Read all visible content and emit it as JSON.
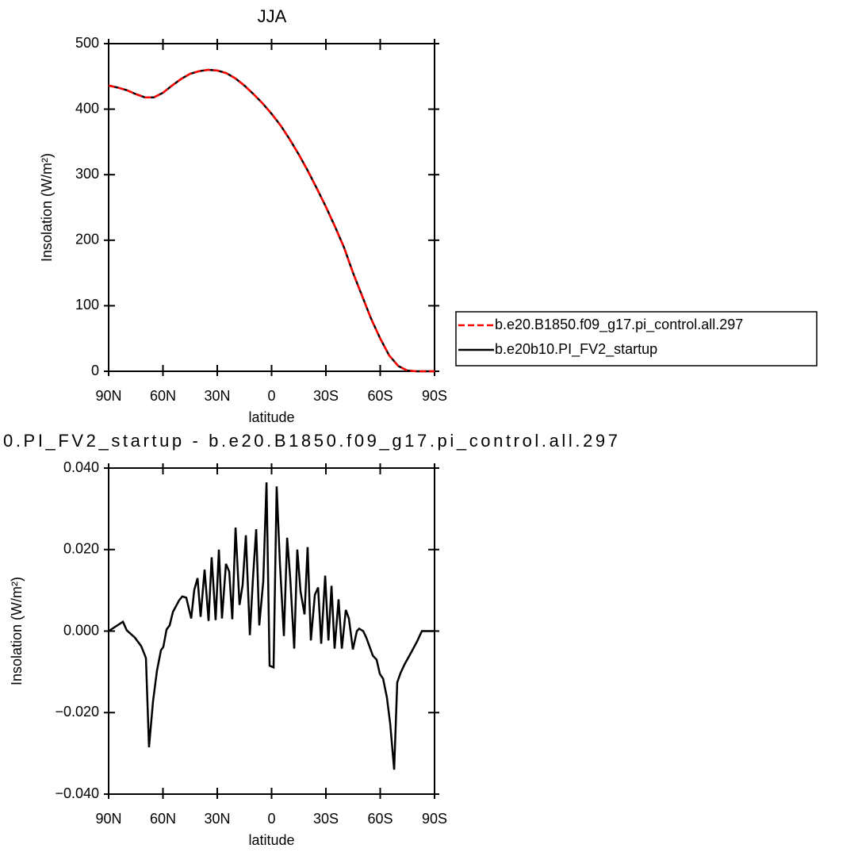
{
  "chart_data": [
    {
      "type": "line",
      "title": "JJA",
      "xlabel": "latitude",
      "ylabel": "Insolation (W/m²)",
      "x": [
        90,
        85,
        80,
        75,
        70,
        65,
        60,
        55,
        50,
        45,
        40,
        35,
        30,
        25,
        20,
        15,
        10,
        5,
        0,
        -5,
        -10,
        -15,
        -20,
        -25,
        -30,
        -35,
        -40,
        -45,
        -50,
        -55,
        -60,
        -65,
        -70,
        -75,
        -80,
        -85,
        -90
      ],
      "series": [
        {
          "name": "b.e20.B1850.f09_g17.pi_control.all.297",
          "color": "#ff0000",
          "dash": true,
          "values": [
            436,
            433,
            429,
            423,
            418,
            418,
            425,
            436,
            446,
            454,
            458,
            460,
            459,
            455,
            447,
            436,
            423,
            409,
            393,
            375,
            354,
            331,
            306,
            279,
            251,
            221,
            189,
            150,
            115,
            80,
            50,
            24,
            8,
            1,
            0,
            0,
            0
          ]
        },
        {
          "name": "b.e20b10.PI_FV2_startup",
          "color": "#000000",
          "dash": false,
          "values": [
            436,
            433,
            429,
            423,
            418,
            418,
            425,
            436,
            446,
            454,
            458,
            460,
            459,
            455,
            447,
            436,
            423,
            409,
            393,
            375,
            354,
            331,
            306,
            279,
            251,
            221,
            189,
            150,
            115,
            80,
            50,
            24,
            8,
            1,
            0,
            0,
            0
          ]
        }
      ],
      "xlim": [
        90,
        -90
      ],
      "xticks": [
        {
          "value": 90,
          "label": "90N"
        },
        {
          "value": 60,
          "label": "60N"
        },
        {
          "value": 30,
          "label": "30N"
        },
        0,
        {
          "value": -30,
          "label": "30S"
        },
        {
          "value": -60,
          "label": "60S"
        },
        {
          "value": -90,
          "label": "90S"
        }
      ],
      "ylim": [
        0,
        500
      ],
      "yticks": [
        0,
        100,
        200,
        300,
        400,
        500
      ],
      "legend": "right"
    },
    {
      "type": "line",
      "title": "0.PI_FV2_startup - b.e20.B1850.f09_g17.pi_control.all.297",
      "xlabel": "latitude",
      "ylabel": "Insolation (W/m²)",
      "x": [
        90,
        82.1,
        80,
        75.5,
        72,
        69.4,
        67.7,
        65.5,
        63.3,
        61.1,
        59.8,
        58,
        56.3,
        54.5,
        51,
        49.3,
        47.1,
        44.4,
        42.7,
        40.9,
        39.2,
        37,
        34.8,
        33.1,
        30.9,
        29.1,
        27.4,
        25.2,
        23.4,
        21.7,
        19.9,
        17.7,
        16,
        14.2,
        12,
        10.3,
        8.5,
        6.8,
        4.6,
        2.8,
        1.1,
        -1.1,
        -2.8,
        -4.6,
        -6.8,
        -8.6,
        -10.3,
        -12.5,
        -14.2,
        -16,
        -18.2,
        -19.9,
        -21.7,
        -23.9,
        -25.7,
        -27.4,
        -29.6,
        -31.4,
        -33.1,
        -34.8,
        -37,
        -38.8,
        -41,
        -42.7,
        -44.9,
        -47.1,
        -48.4,
        -50.6,
        -52.4,
        -55.9,
        -58,
        -59.8,
        -61.6,
        -63.7,
        -65.5,
        -67.7,
        -69.4,
        -71.2,
        -73.4,
        -76.9,
        -80.4,
        -83,
        -90
      ],
      "series": [
        {
          "name": "b.e20b10.PI_FV2_startup",
          "color": "#000000",
          "dash": false,
          "values": [
            0,
            0.0023,
            0.0002,
            -0.0016,
            -0.0037,
            -0.0066,
            -0.0285,
            -0.0173,
            -0.0097,
            -0.0047,
            -0.0039,
            0.0004,
            0.0014,
            0.0047,
            0.0076,
            0.0085,
            0.0082,
            0.0031,
            0.0101,
            0.013,
            0.0035,
            0.0151,
            0.0025,
            0.0181,
            0.0027,
            0.02,
            0.0031,
            0.0165,
            0.0146,
            0.0029,
            0.0254,
            0.0064,
            0.0113,
            0.0235,
            -0.001,
            0.0128,
            0.025,
            0.0014,
            0.0122,
            0.0365,
            -0.0085,
            -0.0089,
            0.0355,
            0.0167,
            -0.0012,
            0.0229,
            0.013,
            -0.0043,
            0.02,
            0.0097,
            0.0041,
            0.0206,
            -0.0023,
            0.0089,
            0.0107,
            -0.0031,
            0.0136,
            -0.0023,
            0.0111,
            -0.0043,
            0.0078,
            -0.0043,
            0.0052,
            0.0031,
            -0.0045,
            0,
            0.0006,
            0,
            -0.0017,
            -0.006,
            -0.007,
            -0.0105,
            -0.0117,
            -0.0163,
            -0.0227,
            -0.034,
            -0.0126,
            -0.0103,
            -0.0082,
            -0.0054,
            -0.0025,
            0,
            0
          ]
        }
      ],
      "xlim": [
        90,
        -90
      ],
      "xticks": [
        {
          "value": 90,
          "label": "90N"
        },
        {
          "value": 60,
          "label": "60N"
        },
        {
          "value": 30,
          "label": "30N"
        },
        0,
        {
          "value": -30,
          "label": "30S"
        },
        {
          "value": -60,
          "label": "60S"
        },
        {
          "value": -90,
          "label": "90S"
        }
      ],
      "ylim": [
        -0.04,
        0.04
      ],
      "yticks": [
        {
          "value": -0.04,
          "label": "−0.040"
        },
        {
          "value": -0.02,
          "label": "−0.020"
        },
        {
          "value": 0,
          "label": "0.000"
        },
        {
          "value": 0.02,
          "label": "0.020"
        },
        {
          "value": 0.04,
          "label": "0.040"
        }
      ]
    }
  ]
}
